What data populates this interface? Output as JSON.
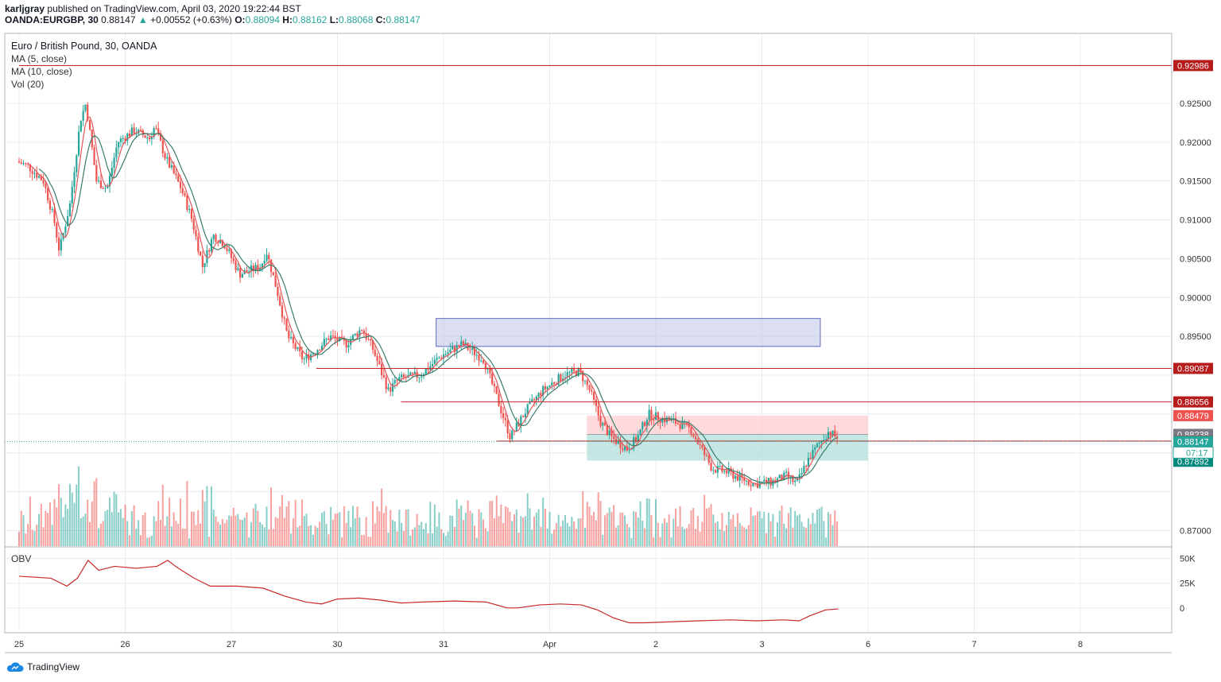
{
  "header": {
    "author": "karljgray",
    "published_text": "published on TradingView.com, April 03, 2020 19:22:44 BST",
    "symbol": "OANDA:EURGBP, 30",
    "last": "0.88147",
    "change": "+0.00552 (+0.63%)",
    "o_label": "O:",
    "o": "0.88094",
    "h_label": "H:",
    "h": "0.88162",
    "l_label": "L:",
    "l": "0.88068",
    "c_label": "C:",
    "c": "0.88147"
  },
  "legend": {
    "title": "Euro / British Pound, 30, OANDA",
    "ma5": "MA (5, close)",
    "ma10": "MA (10, close)",
    "vol": "Vol (20)"
  },
  "obv_label": "OBV",
  "footer": {
    "brand": "TradingView"
  },
  "colors": {
    "up": "#26a69a",
    "down": "#ef5350",
    "ma5": "#e15759",
    "ma10": "#3a7d6b",
    "grid": "#e8ecf1",
    "level": "#c62828",
    "zone_blue": "#c5cae9",
    "zone_red": "#ffcdd2",
    "zone_green": "#b2dfdb"
  },
  "chart_data": {
    "type": "candlestick",
    "price_axis": {
      "ylim": [
        0.868,
        0.934
      ],
      "ticks": [
        "0.92500",
        "0.92000",
        "0.91500",
        "0.91000",
        "0.90500",
        "0.90000",
        "0.89500",
        "0.87000"
      ],
      "tick_values": [
        0.925,
        0.92,
        0.915,
        0.91,
        0.905,
        0.9,
        0.895,
        0.87
      ]
    },
    "time_axis": {
      "labels": [
        "25",
        "26",
        "27",
        "30",
        "31",
        "Apr",
        "2",
        "3",
        "6",
        "7",
        "8"
      ],
      "day_index": [
        0,
        1,
        2,
        3,
        4,
        5,
        6,
        7,
        8,
        9,
        10
      ]
    },
    "path_points": [
      [
        0.0,
        0.9175
      ],
      [
        0.1,
        0.917
      ],
      [
        0.25,
        0.915
      ],
      [
        0.35,
        0.91
      ],
      [
        0.4,
        0.906
      ],
      [
        0.5,
        0.912
      ],
      [
        0.6,
        0.923
      ],
      [
        0.65,
        0.925
      ],
      [
        0.75,
        0.915
      ],
      [
        0.85,
        0.914
      ],
      [
        0.95,
        0.92
      ],
      [
        1.1,
        0.9215
      ],
      [
        1.25,
        0.9205
      ],
      [
        1.3,
        0.922
      ],
      [
        1.4,
        0.918
      ],
      [
        1.55,
        0.914
      ],
      [
        1.65,
        0.91
      ],
      [
        1.75,
        0.904
      ],
      [
        1.85,
        0.908
      ],
      [
        1.95,
        0.907
      ],
      [
        2.1,
        0.903
      ],
      [
        2.3,
        0.904
      ],
      [
        2.35,
        0.906
      ],
      [
        2.45,
        0.901
      ],
      [
        2.55,
        0.895
      ],
      [
        2.7,
        0.892
      ],
      [
        2.8,
        0.893
      ],
      [
        2.95,
        0.895
      ],
      [
        3.1,
        0.894
      ],
      [
        3.25,
        0.896
      ],
      [
        3.35,
        0.8935
      ],
      [
        3.5,
        0.888
      ],
      [
        3.6,
        0.8895
      ],
      [
        3.8,
        0.89
      ],
      [
        4.0,
        0.8925
      ],
      [
        4.2,
        0.894
      ],
      [
        4.3,
        0.893
      ],
      [
        4.4,
        0.892
      ],
      [
        4.5,
        0.888
      ],
      [
        4.6,
        0.884
      ],
      [
        4.65,
        0.882
      ],
      [
        4.8,
        0.8855
      ],
      [
        4.95,
        0.888
      ],
      [
        5.15,
        0.89
      ],
      [
        5.3,
        0.8905
      ],
      [
        5.4,
        0.888
      ],
      [
        5.5,
        0.884
      ],
      [
        5.6,
        0.882
      ],
      [
        5.7,
        0.881
      ],
      [
        5.75,
        0.8805
      ],
      [
        5.85,
        0.882
      ],
      [
        5.95,
        0.885
      ],
      [
        6.05,
        0.8845
      ],
      [
        6.2,
        0.884
      ],
      [
        6.35,
        0.883
      ],
      [
        6.45,
        0.8805
      ],
      [
        6.55,
        0.878
      ],
      [
        6.7,
        0.8775
      ],
      [
        6.8,
        0.8768
      ],
      [
        6.95,
        0.876
      ],
      [
        7.1,
        0.8762
      ],
      [
        7.25,
        0.877
      ],
      [
        7.35,
        0.876
      ],
      [
        7.45,
        0.879
      ],
      [
        7.55,
        0.881
      ],
      [
        7.65,
        0.8828
      ],
      [
        7.72,
        0.882
      ]
    ],
    "horizontal_levels": [
      {
        "price": 0.92986,
        "label": "0.92986",
        "from_day": 0.0
      },
      {
        "price": 0.89087,
        "label": "0.89087",
        "from_day": 2.8
      },
      {
        "price": 0.88656,
        "label": "0.88656",
        "from_day": 3.6
      },
      {
        "price": 0.88152,
        "label": "0.88152",
        "from_day": 4.5
      }
    ],
    "price_tags": [
      {
        "price": 0.92986,
        "label": "0.92986",
        "color": "#b71c1c"
      },
      {
        "price": 0.89087,
        "label": "0.89087",
        "color": "#b71c1c"
      },
      {
        "price": 0.88656,
        "label": "0.88656",
        "color": "#b71c1c"
      },
      {
        "price": 0.88479,
        "label": "0.88479",
        "color": "#ef5350"
      },
      {
        "price": 0.88238,
        "label": "0.88238",
        "color": "#787b86"
      },
      {
        "price": 0.88152,
        "label": "0.88152",
        "color": "#c62828"
      },
      {
        "price": 0.88147,
        "label": "0.88147",
        "color": "#26a69a"
      },
      {
        "price": 0.87892,
        "label": "0.87892",
        "color": "#00897b"
      }
    ],
    "countdown": "07:17",
    "zones": [
      {
        "kind": "rect",
        "x0": 3.93,
        "x1": 7.55,
        "y0": 0.8973,
        "y1": 0.8937,
        "fill": "#c5cae9",
        "stroke": "#5c6bc0"
      },
      {
        "kind": "risk",
        "x0": 5.35,
        "x1": 8.0,
        "y0": 0.88479,
        "y1": 0.88238,
        "fill": "#ffcdd2"
      },
      {
        "kind": "reward",
        "x0": 5.35,
        "x1": 8.0,
        "y0": 0.88238,
        "y1": 0.879,
        "fill": "#b2dfdb"
      }
    ],
    "volume": {
      "panel": "bottom of price pane",
      "note": "per-bar volume columns, green up / red down"
    },
    "obv": {
      "ylim": [
        -25000,
        60000
      ],
      "ticks": [
        "50K",
        "25K",
        "0"
      ],
      "tick_values": [
        50000,
        25000,
        0
      ],
      "points": [
        [
          0.0,
          32000
        ],
        [
          0.3,
          30000
        ],
        [
          0.45,
          22000
        ],
        [
          0.55,
          30000
        ],
        [
          0.65,
          48000
        ],
        [
          0.75,
          38000
        ],
        [
          0.9,
          42000
        ],
        [
          1.1,
          40000
        ],
        [
          1.3,
          42000
        ],
        [
          1.4,
          48000
        ],
        [
          1.5,
          40000
        ],
        [
          1.65,
          30000
        ],
        [
          1.8,
          22000
        ],
        [
          2.05,
          22000
        ],
        [
          2.3,
          20000
        ],
        [
          2.5,
          12000
        ],
        [
          2.7,
          6000
        ],
        [
          2.85,
          4000
        ],
        [
          3.0,
          9000
        ],
        [
          3.2,
          10000
        ],
        [
          3.4,
          8000
        ],
        [
          3.6,
          5000
        ],
        [
          3.8,
          6000
        ],
        [
          4.1,
          7000
        ],
        [
          4.4,
          6000
        ],
        [
          4.6,
          0
        ],
        [
          4.7,
          0
        ],
        [
          4.9,
          3000
        ],
        [
          5.1,
          4000
        ],
        [
          5.3,
          3000
        ],
        [
          5.45,
          -2000
        ],
        [
          5.6,
          -10000
        ],
        [
          5.75,
          -15000
        ],
        [
          5.9,
          -15000
        ],
        [
          6.15,
          -14000
        ],
        [
          6.4,
          -13000
        ],
        [
          6.7,
          -12000
        ],
        [
          6.95,
          -13000
        ],
        [
          7.2,
          -12000
        ],
        [
          7.35,
          -13000
        ],
        [
          7.45,
          -8000
        ],
        [
          7.6,
          -2000
        ],
        [
          7.72,
          -1000
        ]
      ]
    }
  }
}
